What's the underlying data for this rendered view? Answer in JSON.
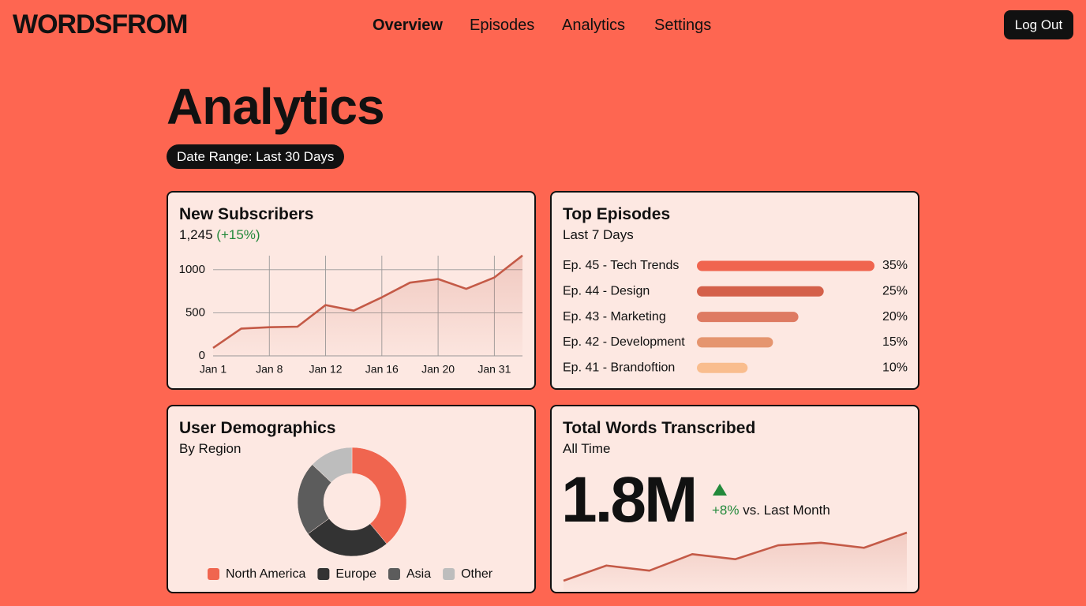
{
  "header": {
    "brand": "WORDSFROM",
    "nav": [
      "Overview",
      "Episodes",
      "Analytics",
      "Settings"
    ],
    "logout": "Log Out"
  },
  "page": {
    "title": "Analytics",
    "date_range": "Date Range: Last 30 Days"
  },
  "chart_data": [
    {
      "type": "line",
      "title": "New Subscribers",
      "total": "1,245",
      "change": "(+15%)",
      "categories": [
        "Jan 1",
        null,
        "Jan 8",
        null,
        "Jan 12",
        null,
        "Jan 16",
        null,
        "Jan 20",
        null,
        "Jan 31",
        null
      ],
      "values": [
        92,
        317,
        333,
        339,
        590,
        525,
        680,
        850,
        892,
        778,
        910,
        1165
      ],
      "color": "#c45a47",
      "ylim": [
        0,
        1200
      ],
      "yticks": [
        0,
        500,
        1000
      ],
      "grid": true
    },
    {
      "type": "bar",
      "title": "Top Episodes",
      "subtitle": "Last 7 Days",
      "categories": [
        "Ep. 45 - Tech Trends",
        "Ep. 44 - Design",
        "Ep. 43 - Marketing",
        "Ep. 42 - Development",
        "Ep. 41 - Brandoftion"
      ],
      "values": [
        35,
        25,
        20,
        15,
        10
      ],
      "value_labels": [
        "35%",
        "25%",
        "20%",
        "15%",
        "10%"
      ],
      "colors": [
        "#f0654f",
        "#d4604a",
        "#de7a62",
        "#e5956f",
        "#f9bd8e"
      ]
    },
    {
      "type": "pie",
      "title": "User Demographics",
      "subtitle": "By Region",
      "categories": [
        "North America",
        "Europe",
        "Asia",
        "Other"
      ],
      "values": [
        39,
        26,
        22,
        13
      ],
      "colors": [
        "#f0654f",
        "#333333",
        "#5c5c5c",
        "#bdbdbd"
      ]
    },
    {
      "type": "sparkline",
      "title": "Total Words Transcribed",
      "subtitle": "All Time",
      "big_number": "1.8M",
      "change": "+8%",
      "change_note": "vs. Last Month",
      "values": [
        2,
        14,
        10,
        23,
        19,
        30,
        32,
        28,
        40
      ],
      "color": "#c45a47"
    }
  ]
}
